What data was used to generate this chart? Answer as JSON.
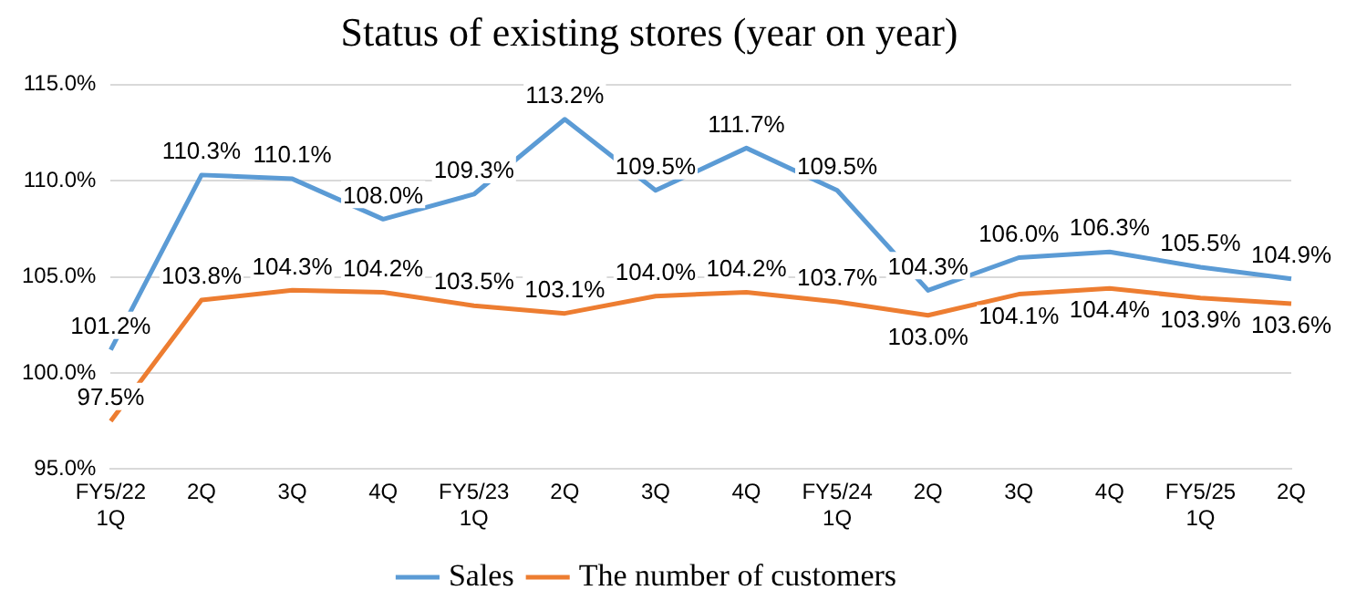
{
  "chart_data": {
    "type": "line",
    "title": "Status of existing stores (year on year)",
    "categories": [
      "FY5/22 1Q",
      "2Q",
      "3Q",
      "4Q",
      "FY5/23 1Q",
      "2Q",
      "3Q",
      "4Q",
      "FY5/24 1Q",
      "2Q",
      "3Q",
      "4Q",
      "FY5/25 1Q",
      "2Q"
    ],
    "series": [
      {
        "name": "Sales",
        "color": "#5b9bd5",
        "values": [
          101.2,
          110.3,
          110.1,
          108.0,
          109.3,
          113.2,
          109.5,
          111.7,
          109.5,
          104.3,
          106.0,
          106.3,
          105.5,
          104.9
        ],
        "value_labels": [
          "101.2%",
          "110.3%",
          "110.1%",
          "108.0%",
          "109.3%",
          "113.2%",
          "109.5%",
          "111.7%",
          "109.5%",
          "104.3%",
          "106.0%",
          "106.3%",
          "105.5%",
          "104.9%"
        ]
      },
      {
        "name": "The number of customers",
        "color": "#ed7d31",
        "values": [
          97.5,
          103.8,
          104.3,
          104.2,
          103.5,
          103.1,
          104.0,
          104.2,
          103.7,
          103.0,
          104.1,
          104.4,
          103.9,
          103.6
        ],
        "value_labels": [
          "97.5%",
          "103.8%",
          "104.3%",
          "104.2%",
          "103.5%",
          "103.1%",
          "104.0%",
          "104.2%",
          "103.7%",
          "103.0%",
          "104.1%",
          "104.4%",
          "103.9%",
          "103.6%"
        ]
      }
    ],
    "ylim": [
      95,
      115
    ],
    "yticks": [
      {
        "value": 95,
        "label": "95.0%"
      },
      {
        "value": 100,
        "label": "100.0%"
      },
      {
        "value": 105,
        "label": "105.0%"
      },
      {
        "value": 110,
        "label": "110.0%"
      },
      {
        "value": 115,
        "label": "115.0%"
      }
    ],
    "grid": "y",
    "legend": "bottom",
    "marker": "none",
    "line_style": "solid"
  }
}
